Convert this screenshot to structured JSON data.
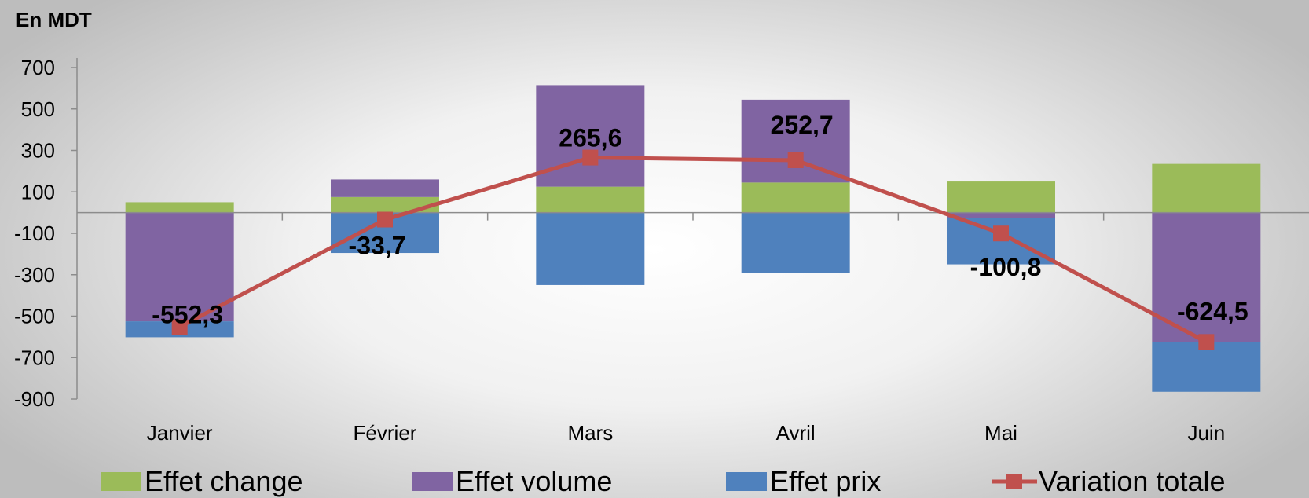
{
  "unit_label": "En MDT",
  "colors": {
    "effet_change": "#9BBB59",
    "effet_volume": "#8064A2",
    "effet_prix": "#4F81BD",
    "variation_totale": "#C0504D"
  },
  "legend": {
    "effet_change": "Effet change",
    "effet_volume": "Effet volume",
    "effet_prix": "Effet prix",
    "variation_totale": "Variation totale"
  },
  "chart_data": {
    "type": "bar",
    "stacked": true,
    "categories": [
      "Janvier",
      "Février",
      "Mars",
      "Avril",
      "Mai",
      "Juin"
    ],
    "series": [
      {
        "name": "Effet change",
        "kind": "bar",
        "values": [
          50,
          75,
          125,
          145,
          150,
          235
        ]
      },
      {
        "name": "Effet volume",
        "kind": "bar",
        "values": [
          -525,
          85,
          490,
          400,
          -25,
          -625
        ]
      },
      {
        "name": "Effet prix",
        "kind": "bar",
        "values": [
          -77,
          -195,
          -350,
          -290,
          -225,
          -240
        ]
      },
      {
        "name": "Variation totale",
        "kind": "line",
        "values": [
          -552.3,
          -33.7,
          265.6,
          252.7,
          -100.8,
          -624.5
        ]
      }
    ],
    "data_labels": [
      "-552,3",
      "-33,7",
      "265,6",
      "252,7",
      "-100,8",
      "-624,5"
    ],
    "yticks": [
      700,
      500,
      300,
      100,
      -100,
      -300,
      -500,
      -700,
      -900
    ],
    "ylim": [
      -900,
      700
    ],
    "ylabel": "En MDT",
    "grid": false,
    "legend_position": "bottom"
  }
}
